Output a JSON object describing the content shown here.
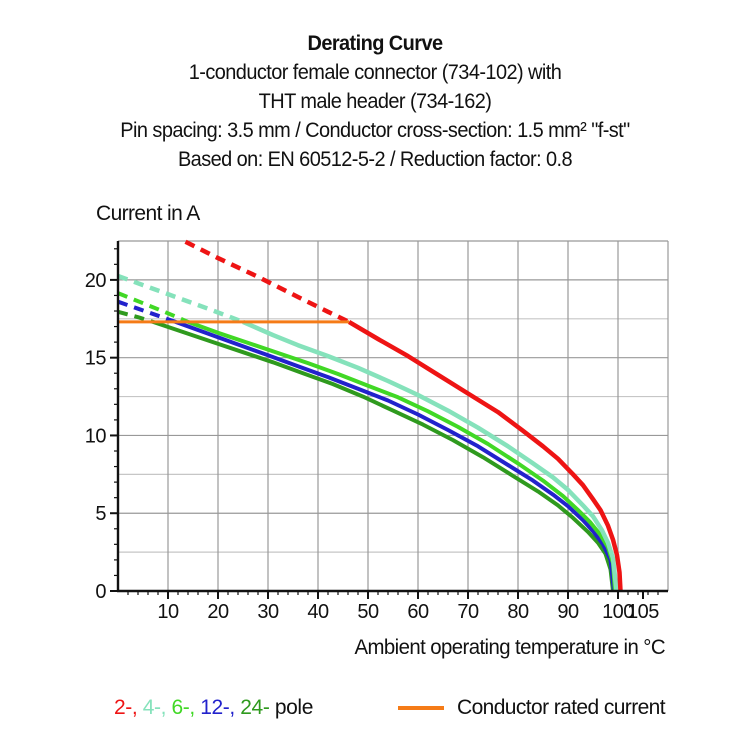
{
  "header": {
    "title": "Derating Curve",
    "line2": "1-conductor female connector (734-102) with",
    "line3": "THT male header (734-162)",
    "line4": "Pin spacing: 3.5 mm / Conductor cross-section: 1.5 mm² \"f-st\"",
    "line5": "Based on: EN 60512-5-2 / Reduction factor: 0.8"
  },
  "axes": {
    "y_axis_label": "Current in A",
    "x_axis_label": "Ambient operating temperature in °C"
  },
  "legend": {
    "pole_items": [
      {
        "label": "2-,",
        "color": "#ee1414"
      },
      {
        "label": "4-,",
        "color": "#85e2bb"
      },
      {
        "label": "6-,",
        "color": "#41d825"
      },
      {
        "label": "12-,",
        "color": "#2222cc"
      },
      {
        "label": "24-",
        "color": "#2f9a1e"
      }
    ],
    "pole_suffix": " pole",
    "rated_label": "Conductor rated current",
    "rated_color": "#f57b17"
  },
  "chart_data": {
    "type": "line",
    "title": "Derating Curve",
    "xlabel": "Ambient operating temperature in °C",
    "ylabel": "Current in A",
    "xlim": [
      0,
      110
    ],
    "ylim": [
      0,
      22.5
    ],
    "x_ticks": [
      10,
      20,
      30,
      40,
      50,
      60,
      70,
      80,
      90,
      100,
      105
    ],
    "y_ticks": [
      0,
      5,
      10,
      15,
      20
    ],
    "grid": {
      "x_step": 10,
      "y_step": 2.5,
      "major_color": "#999999",
      "minor_color": "#c6c6c6"
    },
    "rated_line": {
      "name": "conductor-rated-current",
      "value": 17.3,
      "t_start": 0,
      "t_end": 46.2,
      "color": "#f57b17"
    },
    "series": [
      {
        "name": "24-pole",
        "color": "#2f9a1e",
        "width": 4,
        "dashed_points": [
          [
            0,
            17.95
          ],
          [
            4,
            17.6
          ],
          [
            7,
            17.3
          ]
        ],
        "solid_points": [
          [
            7,
            17.3
          ],
          [
            13,
            16.65
          ],
          [
            19,
            16.0
          ],
          [
            25,
            15.35
          ],
          [
            31,
            14.7
          ],
          [
            37,
            14.0
          ],
          [
            43,
            13.3
          ],
          [
            49,
            12.5
          ],
          [
            55,
            11.6
          ],
          [
            61,
            10.7
          ],
          [
            67,
            9.7
          ],
          [
            73,
            8.6
          ],
          [
            79,
            7.4
          ],
          [
            84,
            6.4
          ],
          [
            88,
            5.5
          ],
          [
            91,
            4.7
          ],
          [
            94,
            3.8
          ],
          [
            96,
            3.1
          ],
          [
            97.5,
            2.4
          ],
          [
            98.5,
            1.4
          ],
          [
            99.0,
            0
          ]
        ]
      },
      {
        "name": "12-pole",
        "color": "#2222cc",
        "width": 4,
        "dashed_points": [
          [
            0,
            18.6
          ],
          [
            4,
            18.15
          ],
          [
            8,
            17.7
          ],
          [
            11.5,
            17.3
          ]
        ],
        "solid_points": [
          [
            11.5,
            17.3
          ],
          [
            18,
            16.55
          ],
          [
            24,
            15.85
          ],
          [
            30,
            15.15
          ],
          [
            36,
            14.45
          ],
          [
            42,
            13.75
          ],
          [
            48,
            13.0
          ],
          [
            54,
            12.25
          ],
          [
            60,
            11.35
          ],
          [
            66,
            10.35
          ],
          [
            72,
            9.3
          ],
          [
            78,
            8.1
          ],
          [
            83,
            7.1
          ],
          [
            87,
            6.2
          ],
          [
            90,
            5.45
          ],
          [
            93,
            4.55
          ],
          [
            95,
            3.85
          ],
          [
            97,
            3.0
          ],
          [
            98.5,
            2.0
          ],
          [
            99.2,
            0
          ]
        ]
      },
      {
        "name": "6-pole",
        "color": "#41d825",
        "width": 4,
        "dashed_points": [
          [
            0,
            19.15
          ],
          [
            5,
            18.5
          ],
          [
            10,
            17.85
          ],
          [
            14,
            17.3
          ]
        ],
        "solid_points": [
          [
            14,
            17.3
          ],
          [
            20,
            16.6
          ],
          [
            26,
            15.95
          ],
          [
            32,
            15.3
          ],
          [
            38,
            14.65
          ],
          [
            44,
            13.95
          ],
          [
            50,
            13.2
          ],
          [
            56,
            12.45
          ],
          [
            62,
            11.55
          ],
          [
            68,
            10.55
          ],
          [
            74,
            9.45
          ],
          [
            80,
            8.2
          ],
          [
            85,
            7.1
          ],
          [
            89,
            6.1
          ],
          [
            92,
            5.2
          ],
          [
            94.5,
            4.4
          ],
          [
            96.5,
            3.6
          ],
          [
            98,
            2.8
          ],
          [
            99,
            1.8
          ],
          [
            99.4,
            0
          ]
        ]
      },
      {
        "name": "4-pole",
        "color": "#85e2bb",
        "width": 4.5,
        "dashed_points": [
          [
            0,
            20.25
          ],
          [
            6,
            19.55
          ],
          [
            12,
            18.85
          ],
          [
            18,
            18.15
          ],
          [
            25,
            17.3
          ]
        ],
        "solid_points": [
          [
            25,
            17.3
          ],
          [
            31,
            16.45
          ],
          [
            36,
            15.8
          ],
          [
            42,
            15.1
          ],
          [
            48,
            14.35
          ],
          [
            54,
            13.5
          ],
          [
            60,
            12.6
          ],
          [
            66,
            11.6
          ],
          [
            72,
            10.5
          ],
          [
            78,
            9.3
          ],
          [
            83,
            8.2
          ],
          [
            87,
            7.3
          ],
          [
            90,
            6.5
          ],
          [
            93,
            5.5
          ],
          [
            95,
            4.8
          ],
          [
            96.8,
            3.9
          ],
          [
            98,
            3.1
          ],
          [
            99,
            2.1
          ],
          [
            99.7,
            0
          ]
        ]
      },
      {
        "name": "2-pole",
        "color": "#ee1414",
        "width": 4.5,
        "dashed_points": [
          [
            13.5,
            22.45
          ],
          [
            20,
            21.4
          ],
          [
            28,
            20.2
          ],
          [
            36,
            18.9
          ],
          [
            42,
            17.95
          ],
          [
            46.2,
            17.3
          ]
        ],
        "solid_points": [
          [
            46.2,
            17.3
          ],
          [
            52,
            16.2
          ],
          [
            58,
            15.1
          ],
          [
            64,
            13.9
          ],
          [
            70,
            12.7
          ],
          [
            76,
            11.5
          ],
          [
            81,
            10.3
          ],
          [
            85,
            9.3
          ],
          [
            88,
            8.5
          ],
          [
            91,
            7.5
          ],
          [
            93,
            6.8
          ],
          [
            95,
            5.9
          ],
          [
            96.5,
            5.2
          ],
          [
            98,
            4.2
          ],
          [
            99,
            3.3
          ],
          [
            99.8,
            2.3
          ],
          [
            100.3,
            1.2
          ],
          [
            100.5,
            0
          ]
        ]
      }
    ]
  }
}
